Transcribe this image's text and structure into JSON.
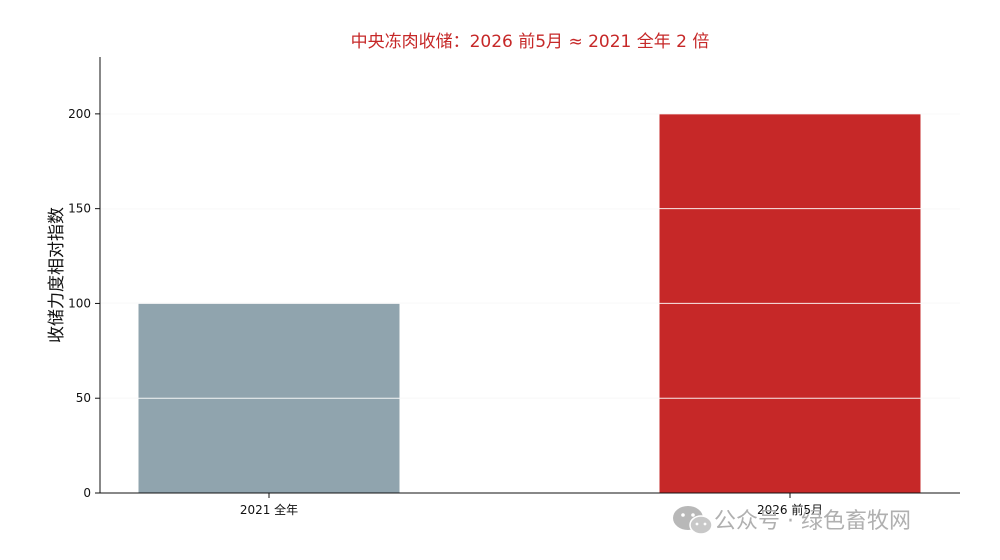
{
  "chart_data": {
    "type": "bar",
    "title": "中央冻肉收储：2026 前5月 ≈ 2021 全年 2 倍",
    "xlabel": "",
    "ylabel": "收储力度相对指数",
    "categories": [
      "2021 全年",
      "2026 前5月"
    ],
    "values": [
      100,
      200
    ],
    "bar_colors": [
      "#90a4ae",
      "#c62828"
    ],
    "title_color": "#c62828",
    "ylim": [
      0,
      230
    ],
    "yticks": [
      0,
      50,
      100,
      150,
      200
    ],
    "ytick_labels": [
      "0",
      "50",
      "100",
      "150",
      "200"
    ],
    "grid": true,
    "legend": "none"
  },
  "watermark": {
    "text": "公众号 · 绿色畜牧网",
    "icon": "wechat-icon"
  }
}
